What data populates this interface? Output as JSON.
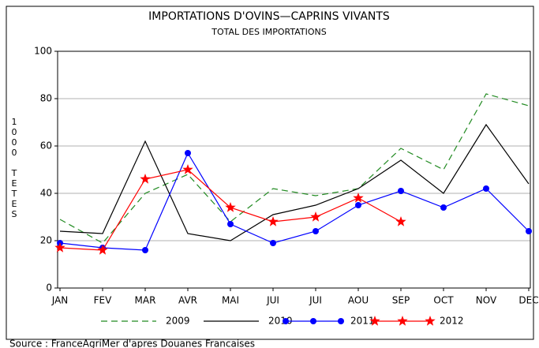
{
  "chart_data": {
    "type": "line",
    "title": "IMPORTATIONS D'OVINS—CAPRINS VIVANTS",
    "subtitle": "TOTAL DES IMPORTATIONS",
    "y_label": "1000 TETES",
    "source": "Source : FranceAgriMer d'apres Douanes Francaises",
    "categories": [
      "JAN",
      "FEV",
      "MAR",
      "AVR",
      "MAI",
      "JUI",
      "JUI",
      "AOU",
      "SEP",
      "OCT",
      "NOV",
      "DEC"
    ],
    "series": [
      {
        "name": "2009",
        "color": "#228b22",
        "dash": true,
        "marker": "none",
        "values": [
          29,
          19,
          40,
          48,
          28,
          42,
          39,
          42,
          59,
          50,
          82,
          77
        ]
      },
      {
        "name": "2010",
        "color": "#000000",
        "dash": false,
        "marker": "none",
        "values": [
          24,
          23,
          62,
          23,
          20,
          31,
          35,
          42,
          54,
          40,
          69,
          44
        ]
      },
      {
        "name": "2011",
        "color": "#0000ff",
        "dash": false,
        "marker": "circle",
        "values": [
          19,
          17,
          16,
          57,
          27,
          19,
          24,
          35,
          41,
          34,
          42,
          24
        ]
      },
      {
        "name": "2012",
        "color": "#ff0000",
        "dash": false,
        "marker": "star",
        "values": [
          17,
          16,
          46,
          50,
          34,
          28,
          30,
          38,
          28,
          null,
          null,
          null
        ]
      }
    ],
    "ylim": [
      0,
      100
    ],
    "yticks": [
      0,
      20,
      40,
      60,
      80,
      100
    ],
    "grid": true,
    "legend": "bottom"
  }
}
